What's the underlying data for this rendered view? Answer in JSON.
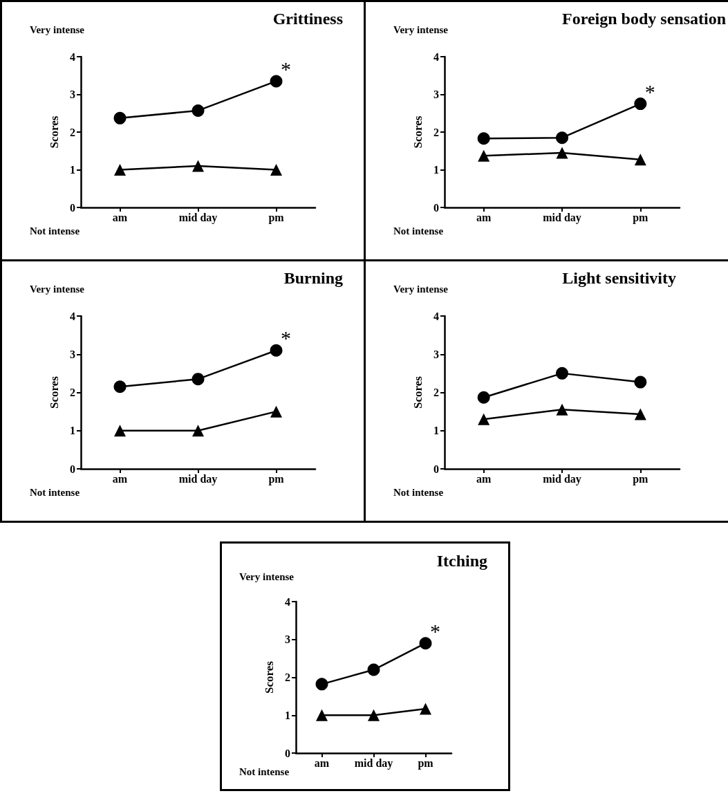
{
  "chart_data": [
    {
      "type": "line",
      "title": "Grittiness",
      "ylabel": "Scores",
      "categories": [
        "am",
        "mid day",
        "pm"
      ],
      "ylim": [
        0,
        4
      ],
      "yticks": [
        0,
        1,
        2,
        3,
        4
      ],
      "line_style": "solid",
      "annotations": [
        "Very intense",
        "Not intense",
        {
          "text": "*",
          "x": "pm",
          "y": 3.35
        }
      ],
      "series": [
        {
          "color": "#000000",
          "marker": "circle",
          "values": [
            2.37,
            2.57,
            3.35
          ]
        },
        {
          "color": "#000000",
          "marker": "triangle",
          "values": [
            1.0,
            1.1,
            1.0
          ]
        }
      ]
    },
    {
      "type": "line",
      "title": "Foreign body sensation",
      "ylabel": "Scores",
      "categories": [
        "am",
        "mid day",
        "pm"
      ],
      "ylim": [
        0,
        4
      ],
      "yticks": [
        0,
        1,
        2,
        3,
        4
      ],
      "line_style": "solid",
      "annotations": [
        "Very intense",
        "Not intense",
        {
          "text": "*",
          "x": "pm",
          "y": 2.75
        }
      ],
      "series": [
        {
          "color": "#000000",
          "marker": "circle",
          "values": [
            1.83,
            1.85,
            2.75
          ]
        },
        {
          "color": "#000000",
          "marker": "triangle",
          "values": [
            1.37,
            1.45,
            1.27
          ]
        }
      ]
    },
    {
      "type": "line",
      "title": "Burning",
      "ylabel": "Scores",
      "categories": [
        "am",
        "mid day",
        "pm"
      ],
      "ylim": [
        0,
        4
      ],
      "yticks": [
        0,
        1,
        2,
        3,
        4
      ],
      "line_style": "solid",
      "annotations": [
        "Very intense",
        "Not intense",
        {
          "text": "*",
          "x": "pm",
          "y": 3.1
        }
      ],
      "series": [
        {
          "color": "#000000",
          "marker": "circle",
          "values": [
            2.15,
            2.35,
            3.1
          ]
        },
        {
          "color": "#000000",
          "marker": "triangle",
          "values": [
            1.0,
            1.0,
            1.5
          ]
        }
      ]
    },
    {
      "type": "line",
      "title": "Light sensitivity",
      "ylabel": "Scores",
      "categories": [
        "am",
        "mid day",
        "pm"
      ],
      "ylim": [
        0,
        4
      ],
      "yticks": [
        0,
        1,
        2,
        3,
        4
      ],
      "line_style": "solid",
      "annotations": [
        "Very intense",
        "Not intense"
      ],
      "series": [
        {
          "color": "#000000",
          "marker": "circle",
          "values": [
            1.87,
            2.5,
            2.27
          ]
        },
        {
          "color": "#000000",
          "marker": "triangle",
          "values": [
            1.3,
            1.55,
            1.43
          ]
        }
      ]
    },
    {
      "type": "line",
      "title": "Itching",
      "ylabel": "Scores",
      "categories": [
        "am",
        "mid day",
        "pm"
      ],
      "ylim": [
        0,
        4
      ],
      "yticks": [
        0,
        1,
        2,
        3,
        4
      ],
      "line_style": "solid",
      "annotations": [
        "Very intense",
        "Not intense",
        {
          "text": "*",
          "x": "pm",
          "y": 2.9
        }
      ],
      "series": [
        {
          "color": "#000000",
          "marker": "circle",
          "values": [
            1.82,
            2.2,
            2.9
          ]
        },
        {
          "color": "#000000",
          "marker": "triangle",
          "values": [
            1.0,
            1.0,
            1.17
          ]
        }
      ]
    }
  ]
}
